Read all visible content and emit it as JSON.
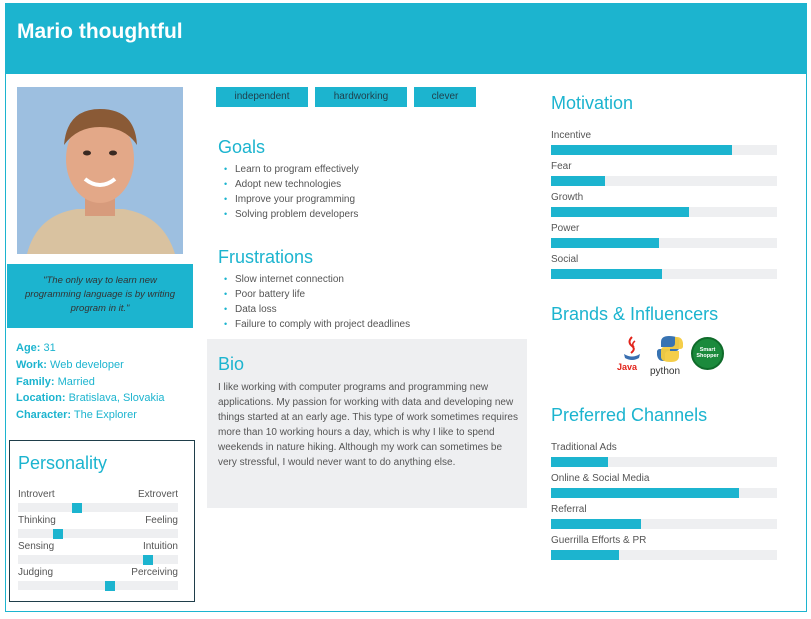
{
  "header": {
    "title": "Mario thoughtful"
  },
  "profile": {
    "quote": "\"The only way to learn new programming language is by writing program in it.\"",
    "facts": [
      {
        "key": "Age:",
        "value": "31"
      },
      {
        "key": "Work:",
        "value": "Web developer"
      },
      {
        "key": "Family:",
        "value": "Married"
      },
      {
        "key": "Location:",
        "value": "Bratislava, Slovakia"
      },
      {
        "key": "Character:",
        "value": "The Explorer"
      }
    ]
  },
  "personality": {
    "title": "Personality",
    "traits": [
      {
        "left": "Introvert",
        "right": "Extrovert",
        "level": 0.36
      },
      {
        "left": "Thinking",
        "right": "Feeling",
        "level": 0.23
      },
      {
        "left": "Sensing",
        "right": "Intuition",
        "level": 0.83
      },
      {
        "left": "Judging",
        "right": "Perceiving",
        "level": 0.58
      }
    ]
  },
  "tags": [
    "independent",
    "hardworking",
    "clever"
  ],
  "goals": {
    "title": "Goals",
    "items": [
      "Learn to program effectively",
      "Adopt new technologies",
      "Improve your programming",
      "Solving problem developers"
    ]
  },
  "frustrations": {
    "title": "Frustrations",
    "items": [
      "Slow internet connection",
      "Poor battery life",
      "Data loss",
      "Failure to comply with project deadlines"
    ]
  },
  "bio": {
    "title": "Bio",
    "text": "I like working with computer programs and programming new applications. My passion for working with data and developing new things started at an early age. This type of work sometimes requires more than 10 working hours a day, which is why I like to spend weekends in nature hiking. Although my work can sometimes be very stressful, I would never want to do anything else."
  },
  "motivation": {
    "title": "Motivation",
    "items": [
      {
        "label": "Incentive",
        "level": 0.8
      },
      {
        "label": "Fear",
        "level": 0.24
      },
      {
        "label": "Growth",
        "level": 0.61
      },
      {
        "label": "Power",
        "level": 0.48
      },
      {
        "label": "Social",
        "level": 0.49
      }
    ]
  },
  "brands": {
    "title": "Brands & Influencers",
    "items": [
      "Java",
      "python",
      "Smart Shopper"
    ]
  },
  "channels": {
    "title": "Preferred Channels",
    "items": [
      {
        "label": "Traditional Ads",
        "level": 0.25
      },
      {
        "label": "Online & Social Media",
        "level": 0.83
      },
      {
        "label": "Referral",
        "level": 0.4
      },
      {
        "label": "Guerrilla Efforts & PR",
        "level": 0.3
      }
    ]
  },
  "colors": {
    "accent": "#1cb4cf",
    "panel": "#eeeff1",
    "text": "#555555",
    "dark": "#1f3e4a"
  }
}
